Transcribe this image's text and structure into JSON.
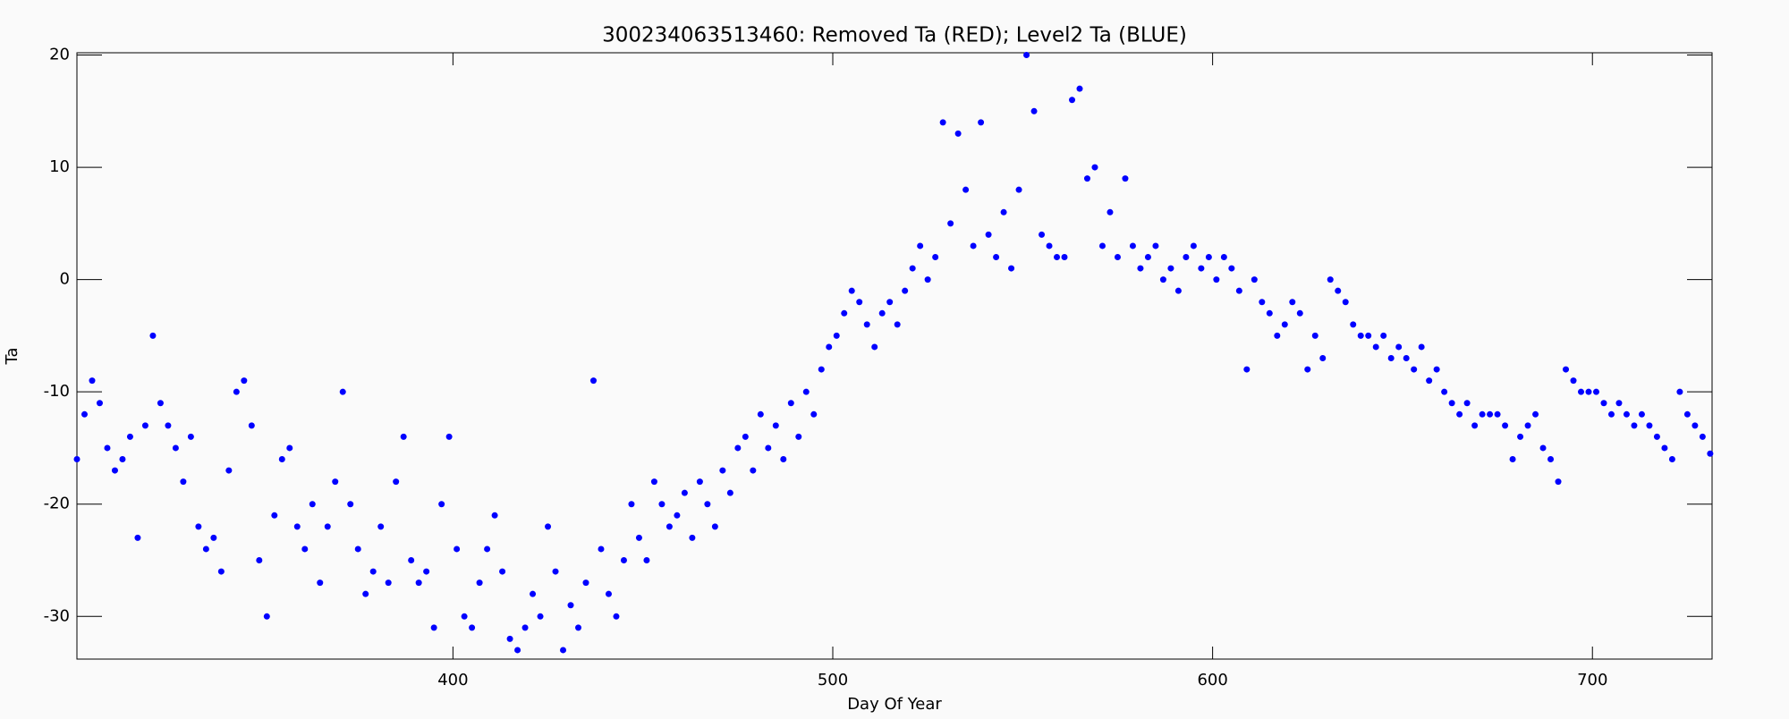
{
  "chart_data": {
    "type": "scatter",
    "title": "300234063513460: Removed Ta (RED); Level2 Ta (BLUE)",
    "x_label": "Day Of Year",
    "y_label": "Ta",
    "color": "#0000ff",
    "xlim": [
      301,
      731.5
    ],
    "ylim": [
      -33.8,
      20.2
    ],
    "xticks": [
      400,
      500,
      600,
      700
    ],
    "yticks": [
      -30,
      -20,
      -10,
      0,
      10,
      20
    ],
    "x": [
      301,
      303,
      305,
      307,
      309,
      311,
      313,
      315,
      317,
      319,
      321,
      323,
      325,
      327,
      329,
      331,
      333,
      335,
      337,
      339,
      341,
      343,
      345,
      347,
      349,
      351,
      353,
      355,
      357,
      359,
      361,
      363,
      365,
      367,
      369,
      371,
      373,
      375,
      377,
      379,
      381,
      383,
      385,
      387,
      389,
      391,
      393,
      395,
      397,
      399,
      401,
      403,
      405,
      407,
      409,
      411,
      413,
      415,
      417,
      419,
      421,
      423,
      425,
      427,
      429,
      431,
      433,
      435,
      437,
      439,
      441,
      443,
      445,
      447,
      449,
      451,
      453,
      455,
      457,
      459,
      461,
      463,
      465,
      467,
      469,
      471,
      473,
      475,
      477,
      479,
      481,
      483,
      485,
      487,
      489,
      491,
      493,
      495,
      497,
      499,
      501,
      503,
      505,
      507,
      509,
      511,
      513,
      515,
      517,
      519,
      521,
      523,
      525,
      527,
      529,
      531,
      533,
      535,
      537,
      539,
      541,
      543,
      545,
      547,
      549,
      551,
      553,
      555,
      557,
      559,
      561,
      563,
      565,
      567,
      569,
      571,
      573,
      575,
      577,
      579,
      581,
      583,
      585,
      587,
      589,
      591,
      593,
      595,
      597,
      599,
      601,
      603,
      605,
      607,
      609,
      611,
      613,
      615,
      617,
      619,
      621,
      623,
      625,
      627,
      629,
      631,
      633,
      635,
      637,
      639,
      641,
      643,
      645,
      647,
      649,
      651,
      653,
      655,
      657,
      659,
      661,
      663,
      665,
      667,
      669,
      671,
      673,
      675,
      677,
      679,
      681,
      683,
      685,
      687,
      689,
      691,
      693,
      695,
      697,
      699,
      701,
      703,
      705,
      707,
      709,
      711,
      713,
      715,
      717,
      719,
      721,
      723,
      725,
      727,
      729,
      731
    ],
    "values": [
      -16,
      -12,
      -9,
      -11,
      -15,
      -17,
      -16,
      -14,
      -23,
      -13,
      -5,
      -11,
      -13,
      -15,
      -18,
      -14,
      -22,
      -24,
      -23,
      -26,
      -17,
      -10,
      -9,
      -13,
      -25,
      -30,
      -21,
      -16,
      -15,
      -22,
      -24,
      -20,
      -27,
      -22,
      -18,
      -10,
      -20,
      -24,
      -28,
      -26,
      -22,
      -27,
      -18,
      -14,
      -25,
      -27,
      -26,
      -31,
      -20,
      -14,
      -24,
      -30,
      -31,
      -27,
      -24,
      -21,
      -26,
      -32,
      -33,
      -31,
      -28,
      -30,
      -22,
      -26,
      -33,
      -29,
      -31,
      -27,
      -9,
      -24,
      -28,
      -30,
      -25,
      -20,
      -23,
      -25,
      -18,
      -20,
      -22,
      -21,
      -19,
      -23,
      -18,
      -20,
      -22,
      -17,
      -19,
      -15,
      -14,
      -17,
      -12,
      -15,
      -13,
      -16,
      -11,
      -14,
      -10,
      -12,
      -8,
      -6,
      -5,
      -3,
      -1,
      -2,
      -4,
      -6,
      -3,
      -2,
      -4,
      -1,
      1,
      3,
      0,
      2,
      14,
      5,
      13,
      8,
      3,
      14,
      4,
      2,
      6,
      1,
      8,
      20,
      15,
      4,
      3,
      2,
      2,
      16,
      17,
      9,
      10,
      3,
      6,
      2,
      9,
      3,
      1,
      2,
      3,
      0,
      1,
      -1,
      2,
      3,
      1,
      2,
      0,
      2,
      1,
      -1,
      -8,
      0,
      -2,
      -3,
      -5,
      -4,
      -2,
      -3,
      -8,
      -5,
      -7,
      0,
      -1,
      -2,
      -4,
      -5,
      -5,
      -6,
      -5,
      -7,
      -6,
      -7,
      -8,
      -6,
      -9,
      -8,
      -10,
      -11,
      -12,
      -11,
      -13,
      -12,
      -12,
      -12,
      -13,
      -16,
      -14,
      -13,
      -12,
      -15,
      -16,
      -18,
      -8,
      -9,
      -10,
      -10,
      -10,
      -11,
      -12,
      -11,
      -12,
      -13,
      -12,
      -13,
      -14,
      -15,
      -16,
      -10,
      -12,
      -13,
      -14,
      -15.5
    ]
  }
}
